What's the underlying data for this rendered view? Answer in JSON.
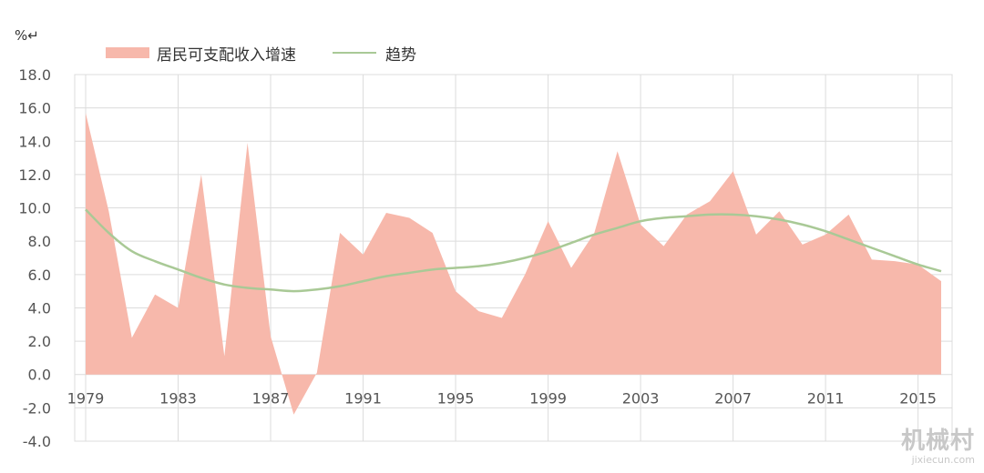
{
  "chart_data": {
    "type": "area",
    "unit_label": "%↵",
    "legend": [
      "居民可支配收入增速",
      "趋势"
    ],
    "ylim": [
      -4.0,
      18.0
    ],
    "yticks": [
      "18.0",
      "16.0",
      "14.0",
      "12.0",
      "10.0",
      "8.0",
      "6.0",
      "4.0",
      "2.0",
      "0.0",
      "-2.0",
      "-4.0"
    ],
    "xticks": [
      "1979",
      "1983",
      "1987",
      "1991",
      "1995",
      "1999",
      "2003",
      "2007",
      "2011",
      "2015"
    ],
    "x": [
      1979,
      1980,
      1981,
      1982,
      1983,
      1984,
      1985,
      1986,
      1987,
      1988,
      1989,
      1990,
      1991,
      1992,
      1993,
      1994,
      1995,
      1996,
      1997,
      1998,
      1999,
      2000,
      2001,
      2002,
      2003,
      2004,
      2005,
      2006,
      2007,
      2008,
      2009,
      2010,
      2011,
      2012,
      2013,
      2014,
      2015,
      2016
    ],
    "series": [
      {
        "name": "居民可支配收入增速",
        "values": [
          15.7,
          9.8,
          2.2,
          4.8,
          4.0,
          12.0,
          1.1,
          13.9,
          2.3,
          -2.4,
          0.1,
          8.5,
          7.2,
          9.7,
          9.4,
          8.5,
          5.0,
          3.8,
          3.4,
          6.0,
          9.2,
          6.4,
          8.5,
          13.4,
          9.0,
          7.7,
          9.6,
          10.4,
          12.2,
          8.4,
          9.8,
          7.8,
          8.4,
          9.6,
          6.9,
          6.8,
          6.6,
          5.6
        ]
      },
      {
        "name": "趋势",
        "values": [
          9.9,
          8.5,
          7.4,
          6.8,
          6.3,
          5.8,
          5.4,
          5.2,
          5.1,
          5.0,
          5.1,
          5.3,
          5.6,
          5.9,
          6.1,
          6.3,
          6.4,
          6.5,
          6.7,
          7.0,
          7.4,
          7.9,
          8.4,
          8.8,
          9.2,
          9.4,
          9.5,
          9.6,
          9.6,
          9.5,
          9.3,
          9.0,
          8.6,
          8.1,
          7.6,
          7.1,
          6.6,
          6.2
        ]
      }
    ],
    "colors": {
      "area": "#f7b8ab",
      "trend": "#a9c996",
      "grid": "#dcdcdc"
    },
    "grid": true,
    "legend_position": "top-left"
  },
  "watermark": {
    "main": "机械村",
    "sub": "jixiecun.com"
  }
}
